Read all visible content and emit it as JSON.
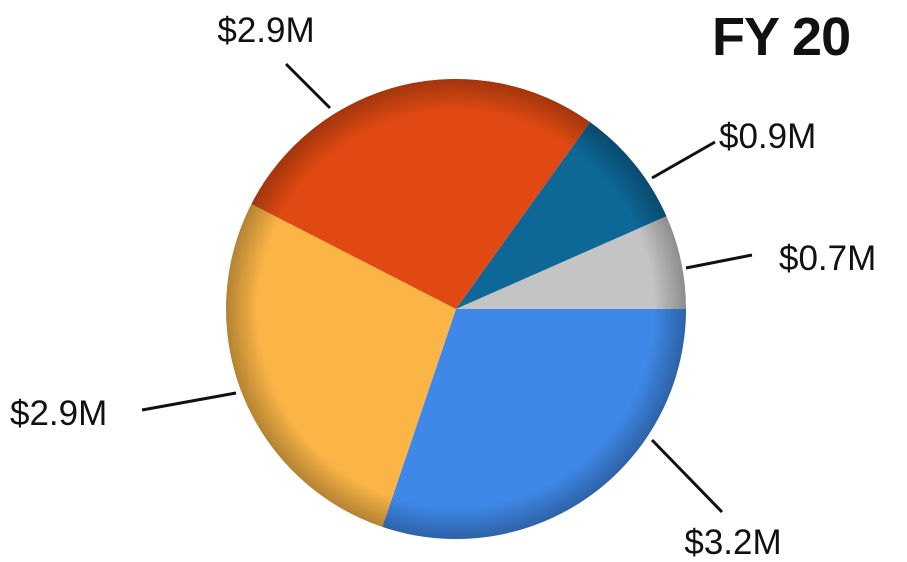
{
  "title": "FY 20",
  "chart_data": {
    "type": "pie",
    "title": "FY 20",
    "labels": [
      "$3.2M",
      "$2.9M",
      "$2.9M",
      "$0.9M",
      "$0.7M"
    ],
    "values": [
      3.2,
      2.9,
      2.9,
      0.9,
      0.7
    ],
    "units": "$M",
    "colors": [
      "#3f88e8",
      "#fab546",
      "#e04a12",
      "#0d6797",
      "#c4c4c4"
    ],
    "start_angle_deg": 0,
    "direction": "clockwise",
    "legend": "none",
    "grid": false
  }
}
